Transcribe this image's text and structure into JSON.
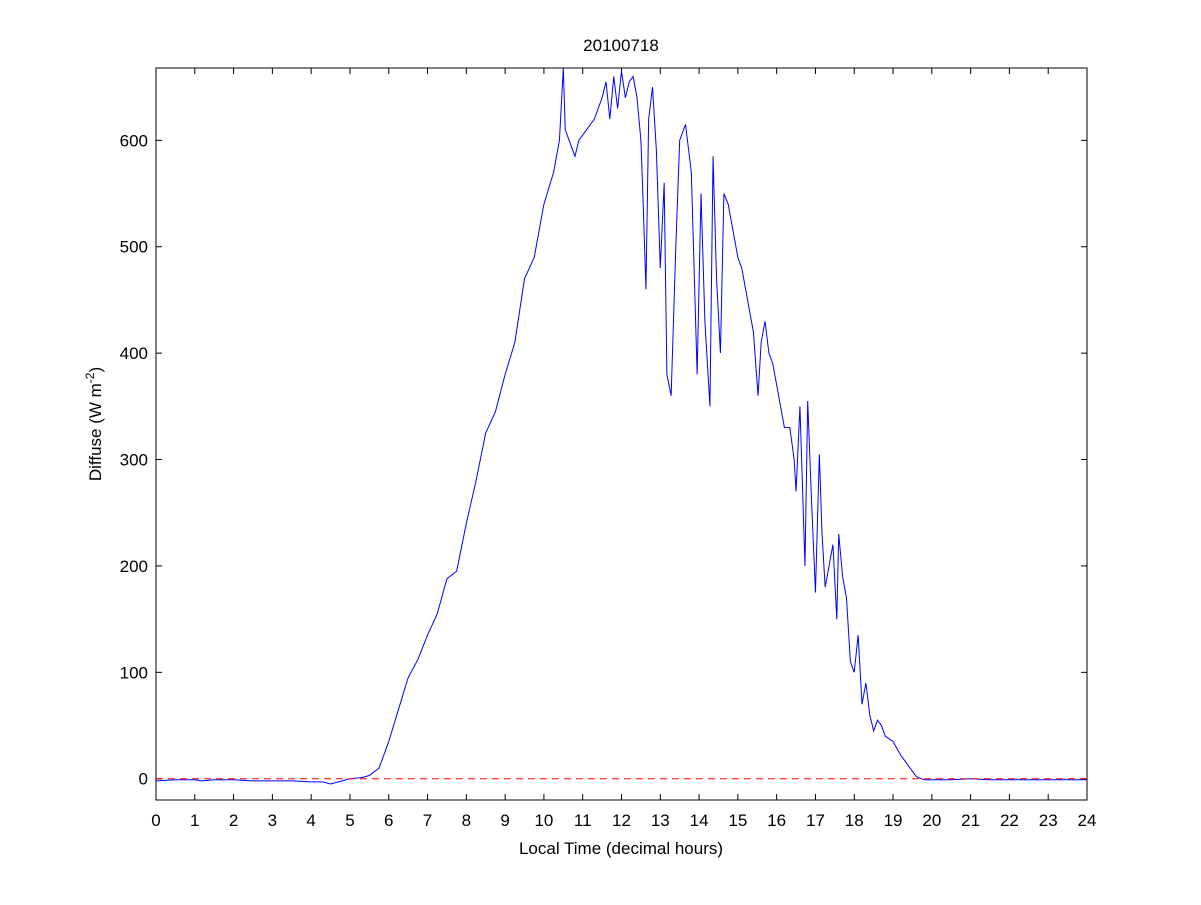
{
  "chart_data": {
    "type": "line",
    "title": "20100718",
    "xlabel": "Local Time (decimal hours)",
    "ylabel": {
      "text": "Diffuse (W m",
      "superscript": "-2",
      "suffix": ")"
    },
    "xlim": [
      0,
      24
    ],
    "ylim": [
      -20,
      668
    ],
    "xticks": [
      0,
      1,
      2,
      3,
      4,
      5,
      6,
      7,
      8,
      9,
      10,
      11,
      12,
      13,
      14,
      15,
      16,
      17,
      18,
      19,
      20,
      21,
      22,
      23,
      24
    ],
    "yticks": [
      0,
      100,
      200,
      300,
      400,
      500,
      600
    ],
    "reference_line": {
      "value": 0,
      "color": "#ff0000"
    },
    "series": [
      {
        "color": "#0000ff",
        "x": [
          0,
          0.5,
          1,
          1.2,
          1.5,
          2,
          2.5,
          3,
          3.5,
          4,
          4.3,
          4.5,
          4.8,
          5,
          5.3,
          5.5,
          5.75,
          6,
          6.25,
          6.5,
          6.75,
          7,
          7.25,
          7.5,
          7.75,
          8,
          8.25,
          8.5,
          8.75,
          9,
          9.25,
          9.5,
          9.75,
          10,
          10.25,
          10.4,
          10.5,
          10.55,
          10.65,
          10.8,
          10.9,
          11.1,
          11.3,
          11.5,
          11.6,
          11.7,
          11.8,
          11.9,
          12,
          12.1,
          12.2,
          12.3,
          12.4,
          12.5,
          12.55,
          12.63,
          12.7,
          12.8,
          12.9,
          13,
          13.1,
          13.17,
          13.28,
          13.4,
          13.5,
          13.65,
          13.8,
          13.95,
          14.05,
          14.15,
          14.28,
          14.36,
          14.45,
          14.55,
          14.64,
          14.75,
          14.9,
          15,
          15.1,
          15.2,
          15.3,
          15.4,
          15.52,
          15.6,
          15.7,
          15.8,
          15.9,
          16,
          16.1,
          16.2,
          16.34,
          16.45,
          16.5,
          16.6,
          16.73,
          16.8,
          16.9,
          17,
          17.1,
          17.17,
          17.25,
          17.35,
          17.45,
          17.55,
          17.6,
          17.7,
          17.8,
          17.9,
          18,
          18.1,
          18.2,
          18.3,
          18.4,
          18.5,
          18.6,
          18.7,
          18.8,
          19,
          19.2,
          19.4,
          19.6,
          19.8,
          20,
          20.5,
          21,
          21.5,
          22,
          23,
          24
        ],
        "values": [
          -2,
          -1,
          -1,
          -2,
          -1,
          -1,
          -2,
          -2,
          -2,
          -3,
          -3,
          -5,
          -2,
          0,
          1,
          3,
          10,
          35,
          65,
          95,
          112,
          135,
          155,
          188,
          195,
          240,
          280,
          325,
          345,
          380,
          410,
          470,
          490,
          540,
          570,
          600,
          668,
          610,
          600,
          585,
          600,
          610,
          620,
          640,
          655,
          620,
          660,
          630,
          665,
          640,
          655,
          660,
          640,
          600,
          550,
          460,
          620,
          650,
          590,
          480,
          560,
          380,
          360,
          500,
          600,
          615,
          570,
          380,
          550,
          430,
          350,
          585,
          470,
          400,
          550,
          540,
          510,
          490,
          480,
          460,
          440,
          420,
          360,
          410,
          430,
          400,
          390,
          370,
          350,
          330,
          330,
          300,
          270,
          350,
          200,
          355,
          260,
          175,
          305,
          230,
          180,
          200,
          220,
          150,
          230,
          190,
          170,
          110,
          100,
          135,
          70,
          90,
          60,
          45,
          55,
          50,
          40,
          35,
          22,
          12,
          2,
          -1,
          -1,
          -1,
          0,
          -1,
          -1,
          -1,
          -1
        ]
      }
    ]
  }
}
